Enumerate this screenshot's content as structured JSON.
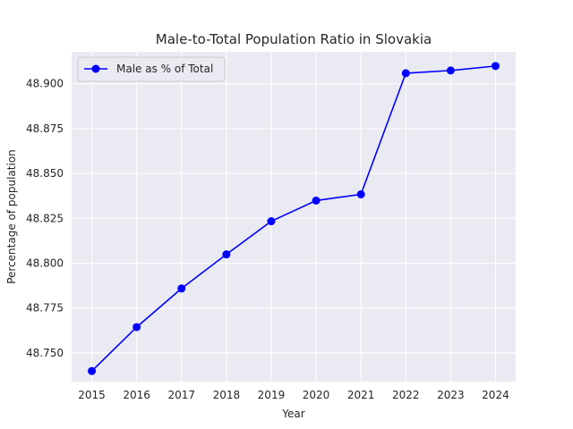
{
  "chart_data": {
    "type": "line",
    "title": "Male-to-Total Population Ratio in Slovakia",
    "xlabel": "Year",
    "ylabel": "Percentage of population",
    "x": [
      "2015",
      "2016",
      "2017",
      "2018",
      "2019",
      "2020",
      "2021",
      "2022",
      "2023",
      "2024"
    ],
    "series": [
      {
        "name": "Male as % of Total",
        "values": [
          48.7399,
          48.7644,
          48.7859,
          48.8049,
          48.8234,
          48.8349,
          48.8384,
          48.9059,
          48.9074,
          48.9099
        ],
        "color": "#0000ff",
        "marker": "circle"
      }
    ],
    "ylim": [
      48.734,
      48.9178
    ],
    "yticks": [
      "48.750",
      "48.775",
      "48.800",
      "48.825",
      "48.850",
      "48.875",
      "48.900"
    ],
    "grid": true,
    "legend_position": "top-left",
    "background": "#eaeaf2",
    "grid_color": "#ffffff"
  }
}
